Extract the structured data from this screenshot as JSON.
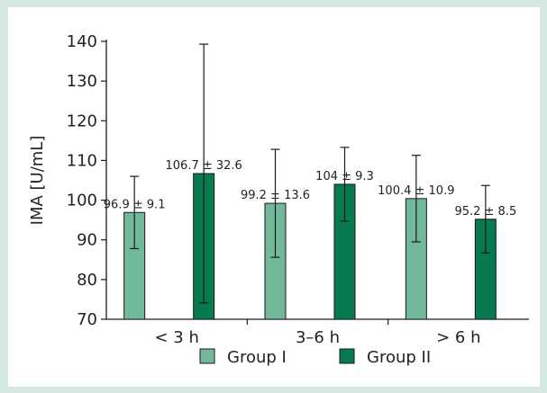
{
  "colors": {
    "background": "#d5e8e0",
    "panel": "#ffffff",
    "group1": "#72b89a",
    "group2": "#087a4f",
    "stroke": "#1a1a1a"
  },
  "chart_data": {
    "type": "bar",
    "title": "",
    "xlabel": "",
    "ylabel": "IMA [U/mL]",
    "ylim": [
      70,
      140
    ],
    "yticks": [
      70,
      80,
      90,
      100,
      110,
      120,
      130,
      140
    ],
    "grid": false,
    "legend_position": "bottom",
    "categories": [
      "< 3 h",
      "3–6 h",
      "> 6 h"
    ],
    "series": [
      {
        "name": "Group I",
        "color": "#72b89a",
        "values": [
          96.9,
          99.2,
          100.4
        ],
        "errors": [
          9.1,
          13.6,
          10.9
        ],
        "labels": [
          "96.9 ± 9.1",
          "99.2 ± 13.6",
          "100.4 ± 10.9"
        ]
      },
      {
        "name": "Group II",
        "color": "#087a4f",
        "values": [
          106.7,
          104,
          95.2
        ],
        "errors": [
          32.6,
          9.3,
          8.5
        ],
        "labels": [
          "106.7 ± 32.6",
          "104 ± 9.3",
          "95.2 ± 8.5"
        ]
      }
    ]
  }
}
